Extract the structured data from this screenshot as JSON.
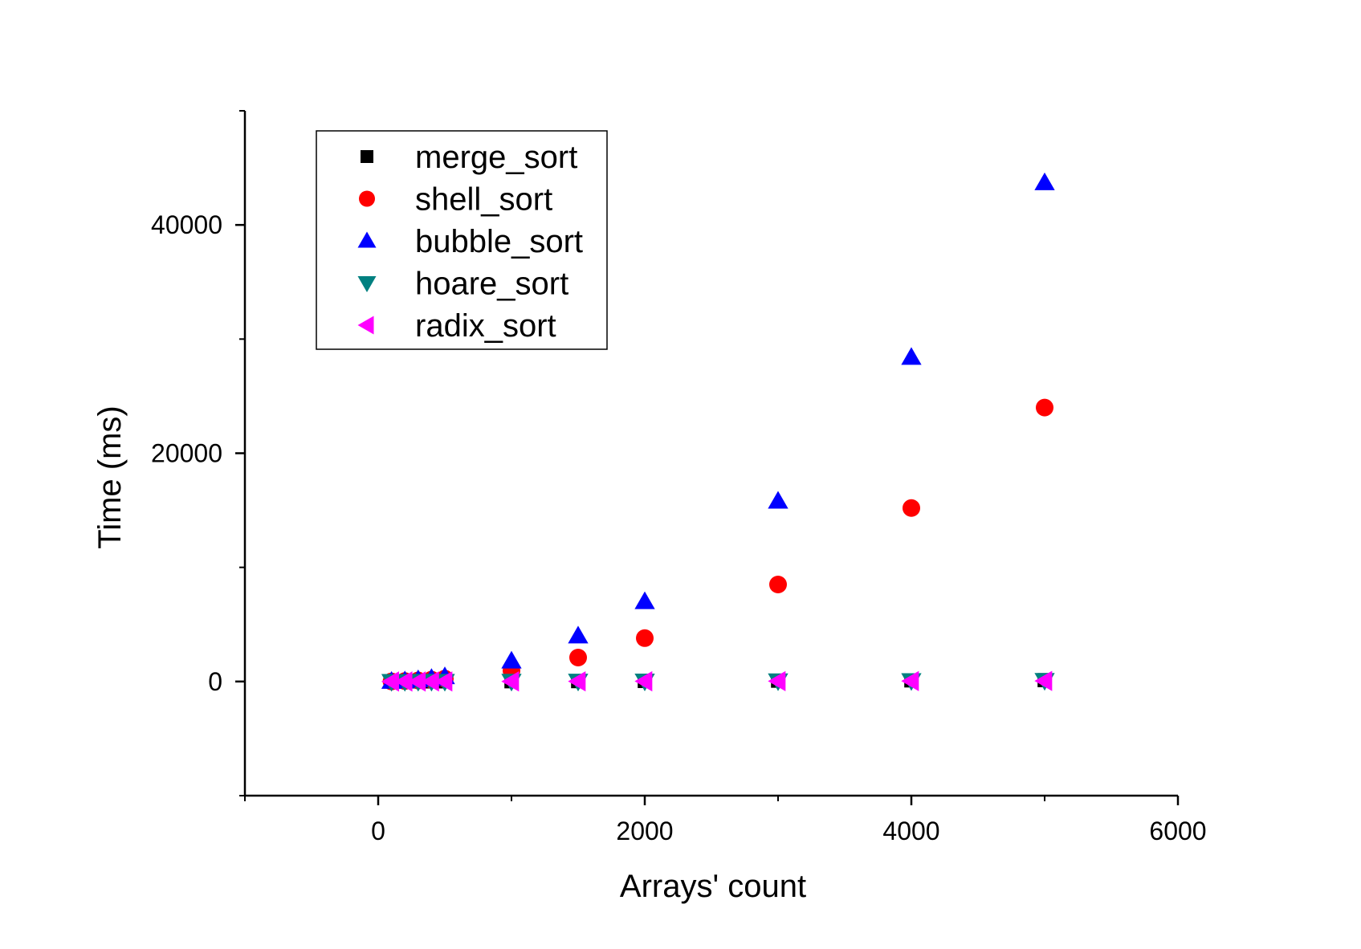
{
  "chart_data": {
    "type": "scatter",
    "title": "",
    "xlabel": "Arrays' count",
    "ylabel": "Time (ms)",
    "xlim": [
      -1000,
      6000
    ],
    "ylim": [
      -10000,
      50000
    ],
    "x_ticks": [
      0,
      2000,
      4000,
      6000
    ],
    "x_tick_labels": [
      "0",
      "2000",
      "4000",
      "6000"
    ],
    "y_ticks": [
      0,
      20000,
      40000
    ],
    "y_tick_labels": [
      "0",
      "20000",
      "40000"
    ],
    "y_minor_ticks": [
      -10000,
      10000,
      30000,
      50000
    ],
    "x_minor_ticks": [
      -1000,
      1000,
      3000,
      5000
    ],
    "grid": false,
    "legend_position": "top-left",
    "x": [
      100,
      200,
      300,
      400,
      500,
      1000,
      1500,
      2000,
      3000,
      4000,
      5000
    ],
    "series": [
      {
        "name": "merge_sort",
        "marker": "square",
        "color": "#000000",
        "values": [
          2,
          4,
          6,
          8,
          10,
          20,
          30,
          45,
          70,
          95,
          120
        ]
      },
      {
        "name": "shell_sort",
        "marker": "circle",
        "color": "#ff0000",
        "values": [
          10,
          40,
          90,
          160,
          250,
          950,
          2100,
          3800,
          8500,
          15200,
          24000
        ]
      },
      {
        "name": "bubble_sort",
        "marker": "triangle-up",
        "color": "#0000ff",
        "values": [
          20,
          70,
          160,
          280,
          430,
          1800,
          4000,
          7000,
          15800,
          28400,
          43700
        ]
      },
      {
        "name": "hoare_sort",
        "marker": "triangle-down",
        "color": "#008080",
        "values": [
          1,
          2,
          4,
          5,
          7,
          15,
          22,
          30,
          50,
          70,
          90
        ]
      },
      {
        "name": "radix_sort",
        "marker": "triangle-left",
        "color": "#ff00ff",
        "values": [
          1,
          2,
          3,
          4,
          5,
          10,
          15,
          20,
          30,
          40,
          50
        ]
      }
    ]
  }
}
